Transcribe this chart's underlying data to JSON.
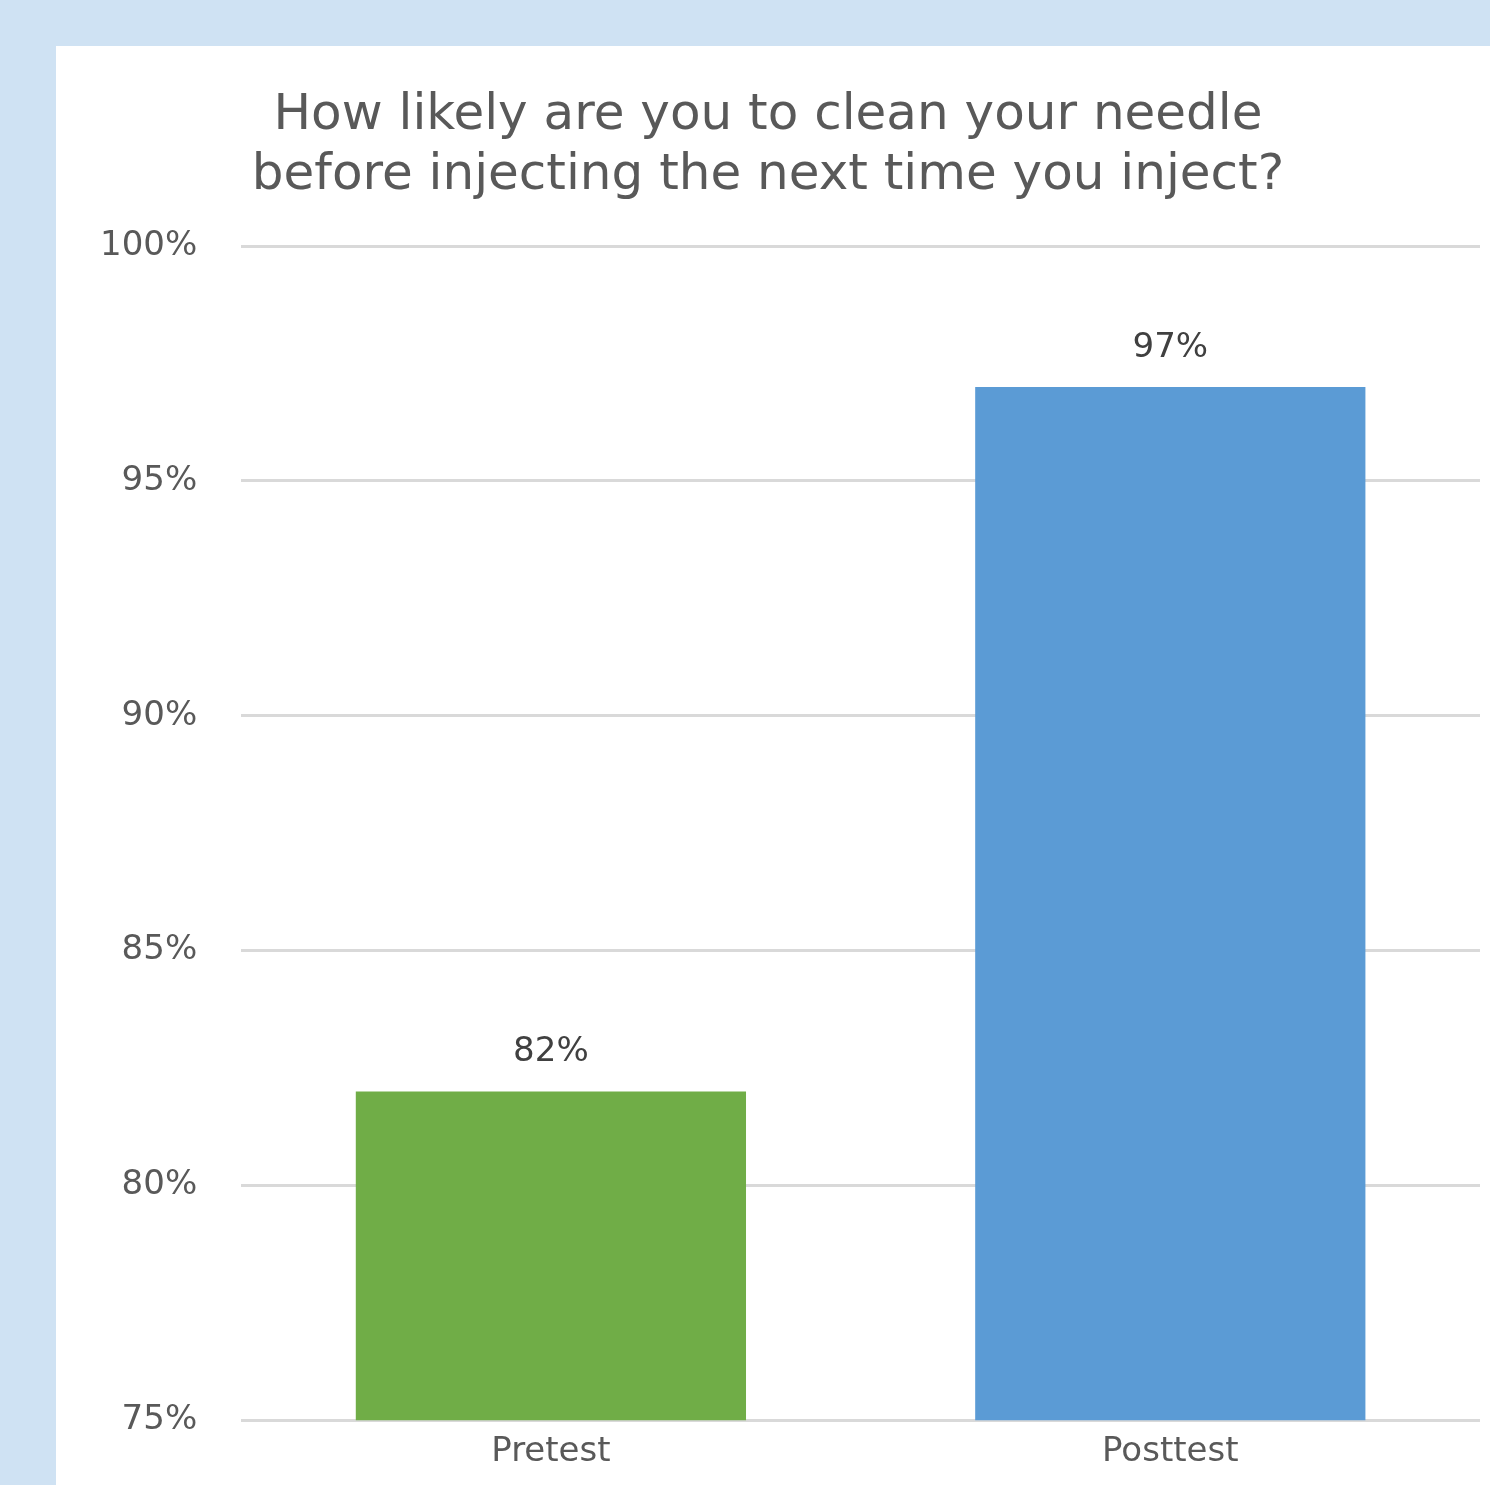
{
  "chart_data": {
    "type": "bar",
    "title": "How likely are you to clean your needle before injecting the next time you inject?",
    "categories": [
      "Pretest",
      "Posttest"
    ],
    "values": [
      82,
      97
    ],
    "colors": [
      "#70ad47",
      "#5b9bd5"
    ],
    "value_labels": [
      "82%",
      "97%"
    ],
    "ylim": [
      75,
      100
    ],
    "yticks": [
      {
        "value": 75,
        "label": "75%"
      },
      {
        "value": 80,
        "label": "80%"
      },
      {
        "value": 85,
        "label": "85%"
      },
      {
        "value": 90,
        "label": "90%"
      },
      {
        "value": 95,
        "label": "95%"
      },
      {
        "value": 100,
        "label": "100%"
      }
    ],
    "grid": "y",
    "legend": false
  }
}
